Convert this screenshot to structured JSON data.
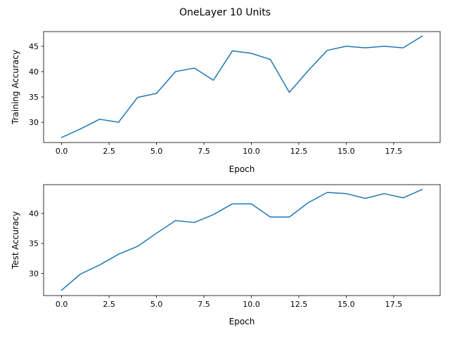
{
  "figure": {
    "suptitle": "OneLayer 10 Units"
  },
  "chart_data": [
    {
      "type": "line",
      "title": "",
      "xlabel": "Epoch",
      "ylabel": "Training Accuracy",
      "xlim": [
        -0.95,
        19.95
      ],
      "ylim": [
        26.0,
        47.9
      ],
      "xticks": [
        0.0,
        2.5,
        5.0,
        7.5,
        10.0,
        12.5,
        15.0,
        17.5
      ],
      "xtick_labels": [
        "0.0",
        "2.5",
        "5.0",
        "7.5",
        "10.0",
        "12.5",
        "15.0",
        "17.5"
      ],
      "yticks": [
        30,
        35,
        40,
        45
      ],
      "ytick_labels": [
        "30",
        "35",
        "40",
        "45"
      ],
      "grid": false,
      "series": [
        {
          "color": "#1f77b4",
          "x": [
            0,
            1,
            2,
            3,
            4,
            5,
            6,
            7,
            8,
            9,
            10,
            11,
            12,
            13,
            14,
            15,
            16,
            17,
            18,
            19
          ],
          "y": [
            27.0,
            28.7,
            30.6,
            30.0,
            34.9,
            35.7,
            40.0,
            40.7,
            38.3,
            44.1,
            43.6,
            42.4,
            35.9,
            40.2,
            44.2,
            45.0,
            44.7,
            45.0,
            44.7,
            47.0
          ]
        }
      ]
    },
    {
      "type": "line",
      "title": "",
      "xlabel": "Epoch",
      "ylabel": "Test Accuracy",
      "xlim": [
        -0.95,
        19.95
      ],
      "ylim": [
        26.3,
        44.8
      ],
      "xticks": [
        0.0,
        2.5,
        5.0,
        7.5,
        10.0,
        12.5,
        15.0,
        17.5
      ],
      "xtick_labels": [
        "0.0",
        "2.5",
        "5.0",
        "7.5",
        "10.0",
        "12.5",
        "15.0",
        "17.5"
      ],
      "yticks": [
        30,
        35,
        40
      ],
      "ytick_labels": [
        "30",
        "35",
        "40"
      ],
      "grid": false,
      "series": [
        {
          "color": "#1f77b4",
          "x": [
            0,
            1,
            2,
            3,
            4,
            5,
            6,
            7,
            8,
            9,
            10,
            11,
            12,
            13,
            14,
            15,
            16,
            17,
            18,
            19
          ],
          "y": [
            27.2,
            29.9,
            31.4,
            33.2,
            34.5,
            36.7,
            38.8,
            38.5,
            39.8,
            41.6,
            41.6,
            39.4,
            39.4,
            41.8,
            43.5,
            43.3,
            42.5,
            43.3,
            42.6,
            44.0
          ]
        }
      ]
    }
  ]
}
